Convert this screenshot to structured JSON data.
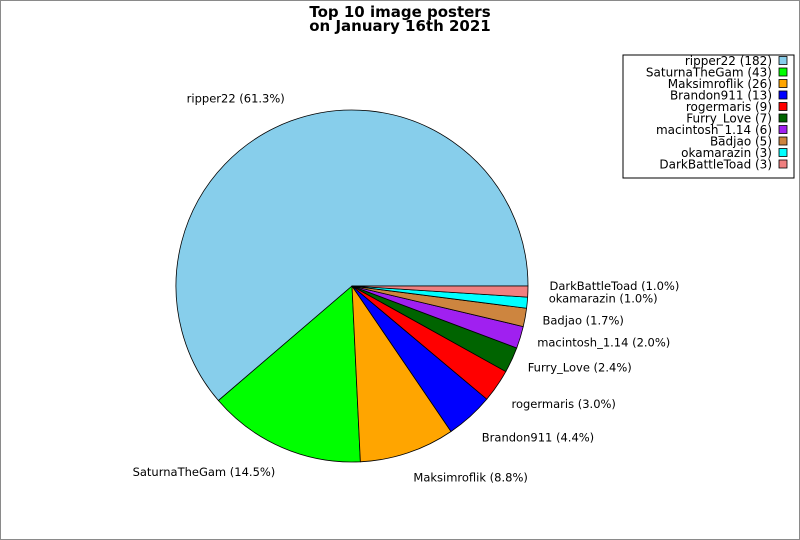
{
  "chart_data": {
    "type": "pie",
    "title_lines": [
      "Top 10 image posters",
      "on January 16th 2021"
    ],
    "slices": [
      {
        "name": "ripper22",
        "value": 182,
        "pct": "61.3%",
        "color": "#87CEEB",
        "legend": "ripper22 (182)",
        "label": "ripper22 (61.3%)"
      },
      {
        "name": "SaturnaTheGam",
        "value": 43,
        "pct": "14.5%",
        "color": "#00FF00",
        "legend": "SaturnaTheGam (43)",
        "label": "SaturnaTheGam (14.5%)"
      },
      {
        "name": "Maksimroflik",
        "value": 26,
        "pct": "8.8%",
        "color": "#FFA500",
        "legend": "Maksimroflik (26)",
        "label": "Maksimroflik (8.8%)"
      },
      {
        "name": "Brandon911",
        "value": 13,
        "pct": "4.4%",
        "color": "#0000FF",
        "legend": "Brandon911 (13)",
        "label": "Brandon911 (4.4%)"
      },
      {
        "name": "rogermaris",
        "value": 9,
        "pct": "3.0%",
        "color": "#FF0000",
        "legend": "rogermaris (9)",
        "label": "rogermaris (3.0%)"
      },
      {
        "name": "Furry_Love",
        "value": 7,
        "pct": "2.4%",
        "color": "#006400",
        "legend": "Furry_Love (7)",
        "label": "Furry_Love (2.4%)"
      },
      {
        "name": "macintosh_1.14",
        "value": 6,
        "pct": "2.0%",
        "color": "#A020F0",
        "legend": "macintosh_1.14 (6)",
        "label": "macintosh_1.14 (2.0%)"
      },
      {
        "name": "Badjao",
        "value": 5,
        "pct": "1.7%",
        "color": "#CD853F",
        "legend": "Badjao (5)",
        "label": "Badjao (1.7%)"
      },
      {
        "name": "okamarazin",
        "value": 3,
        "pct": "1.0%",
        "color": "#00FFFF",
        "legend": "okamarazin (3)",
        "label": "okamarazin (1.0%)"
      },
      {
        "name": "DarkBattleToad",
        "value": 3,
        "pct": "1.0%",
        "color": "#F08080",
        "legend": "DarkBattleToad (3)",
        "label": "DarkBattleToad (1.0%)"
      }
    ],
    "start": "east",
    "direction": "counterclockwise",
    "legend_position": "top-right"
  }
}
